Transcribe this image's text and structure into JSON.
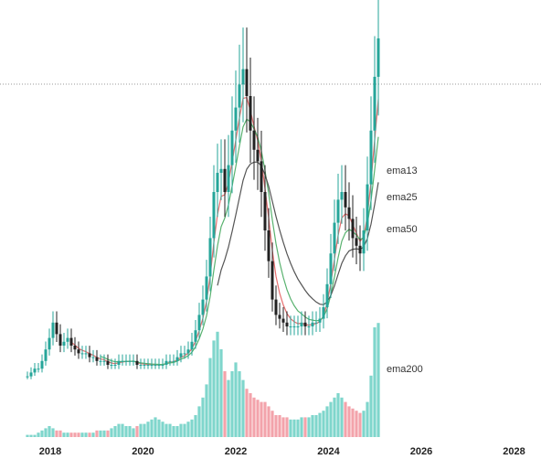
{
  "chart_data": {
    "type": "candlestick",
    "x_axis": {
      "ticks": [
        "2018",
        "2020",
        "2022",
        "2024",
        "2026",
        "2028"
      ]
    },
    "legend_labels": [
      "ema13",
      "ema25",
      "ema50",
      "ema200"
    ],
    "colors": {
      "up": "#26a69a",
      "down": "#222222",
      "volume_up": "#7fd6cc",
      "volume_down": "#f3a3ab",
      "ema13": "#e76f6f",
      "ema25": "#59b26f",
      "ema50": "#555555",
      "price_line": "#999999"
    },
    "candles": {
      "start": "2017-04",
      "interval": "1 month",
      "close_path": [
        2,
        3,
        4,
        4,
        6,
        9,
        12,
        16,
        13,
        10,
        11,
        12,
        10,
        9,
        8,
        8,
        8,
        7,
        7,
        6,
        6,
        6,
        5,
        5,
        5,
        6,
        6,
        6,
        6,
        6,
        5,
        5,
        5,
        5,
        5,
        5,
        5,
        5,
        6,
        6,
        6,
        7,
        8,
        8,
        9,
        11,
        14,
        18,
        22,
        28,
        38,
        50,
        55,
        56,
        50,
        57,
        66,
        72,
        78,
        82,
        75,
        66,
        61,
        58,
        50,
        40,
        32,
        22,
        18,
        17,
        16,
        15,
        15,
        15,
        15,
        16,
        15,
        15,
        16,
        16,
        17,
        20,
        26,
        34,
        42,
        48,
        50,
        46,
        43,
        38,
        36,
        34,
        40,
        52,
        66,
        80,
        90
      ],
      "volume_path": [
        1,
        1,
        1,
        2,
        3,
        4,
        5,
        4,
        3,
        3,
        2,
        2,
        2,
        2,
        2,
        2,
        2,
        2,
        2,
        3,
        3,
        3,
        3,
        4,
        5,
        6,
        6,
        5,
        5,
        4,
        5,
        6,
        6,
        7,
        8,
        9,
        8,
        7,
        6,
        6,
        5,
        5,
        6,
        6,
        7,
        8,
        10,
        14,
        18,
        24,
        36,
        44,
        48,
        40,
        30,
        26,
        30,
        34,
        30,
        26,
        22,
        20,
        18,
        17,
        16,
        16,
        14,
        12,
        10,
        10,
        9,
        9,
        8,
        8,
        8,
        9,
        9,
        9,
        10,
        10,
        11,
        12,
        14,
        16,
        18,
        20,
        18,
        16,
        14,
        13,
        12,
        11,
        12,
        16,
        28,
        50,
        52
      ]
    }
  }
}
